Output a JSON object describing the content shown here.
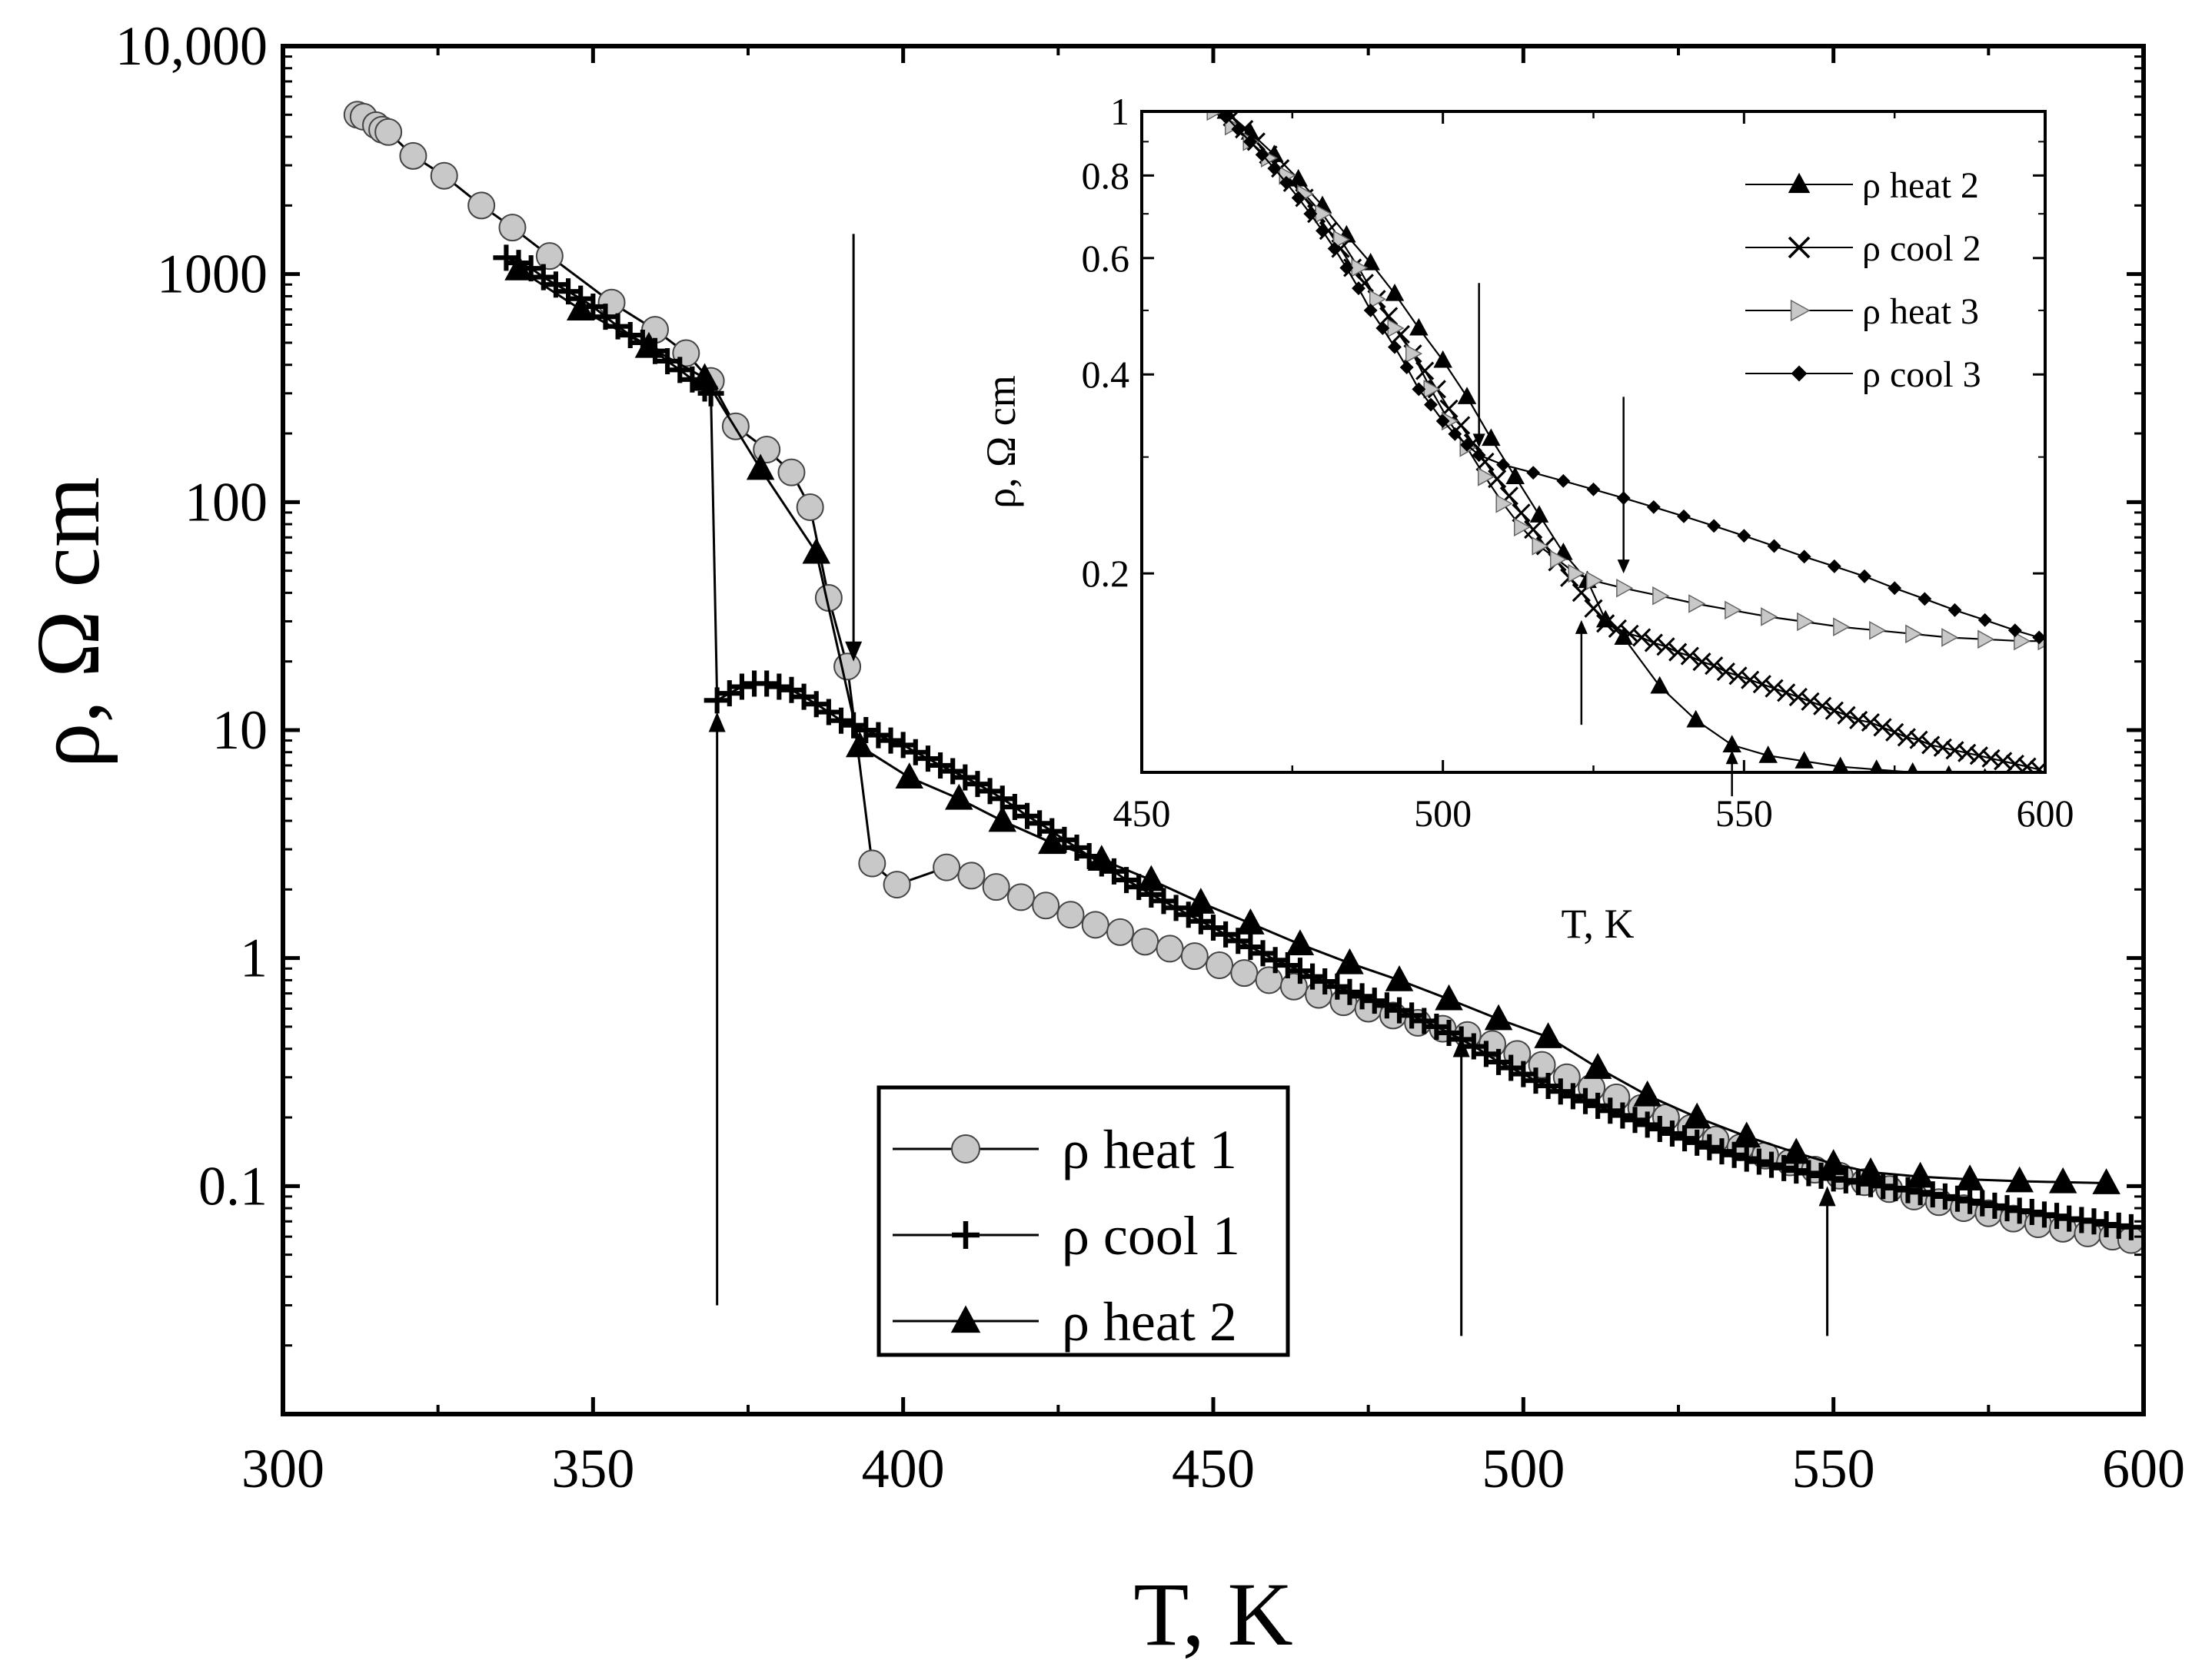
{
  "chart_data": [
    {
      "id": "main",
      "type": "line",
      "xlabel": "T, K",
      "ylabel": "ρ, Ω cm",
      "xlim": [
        300,
        600
      ],
      "ylim": [
        0.01,
        10000
      ],
      "yscale": "log",
      "x_ticks": [
        300,
        350,
        400,
        450,
        500,
        550,
        600
      ],
      "y_ticks": [
        {
          "value": 0.1,
          "label": "0.1"
        },
        {
          "value": 1,
          "label": "1"
        },
        {
          "value": 10,
          "label": "10"
        },
        {
          "value": 100,
          "label": "100"
        },
        {
          "value": 1000,
          "label": "1000"
        },
        {
          "value": 10000,
          "label": "10,000"
        }
      ],
      "legend_position": "bottom-center",
      "series": [
        {
          "name": "ρ heat 1",
          "marker": "circle",
          "marker_color": "#c8c8c8",
          "x": [
            312,
            313,
            315,
            316,
            317,
            321,
            326,
            332,
            337,
            343,
            353,
            360,
            365,
            369,
            373,
            378,
            382,
            385,
            388,
            391,
            395,
            399,
            407,
            411,
            415,
            419,
            423,
            427,
            431,
            435,
            439,
            443,
            447,
            451,
            455,
            459,
            463,
            467,
            471,
            475,
            479,
            483,
            487,
            491,
            495,
            499,
            503,
            507,
            511,
            515,
            519,
            523,
            527,
            531,
            535,
            539,
            543,
            547,
            551,
            555,
            559,
            563,
            567,
            571,
            575,
            579,
            583,
            587,
            591,
            595,
            598
          ],
          "y": [
            5000,
            4900,
            4500,
            4300,
            4200,
            3300,
            2700,
            2000,
            1600,
            1200,
            750,
            570,
            450,
            340,
            215,
            170,
            135,
            95,
            38,
            19,
            2.6,
            2.1,
            2.5,
            2.3,
            2.05,
            1.85,
            1.7,
            1.55,
            1.4,
            1.3,
            1.18,
            1.1,
            1.02,
            0.93,
            0.86,
            0.8,
            0.75,
            0.69,
            0.64,
            0.6,
            0.56,
            0.52,
            0.49,
            0.46,
            0.42,
            0.38,
            0.34,
            0.3,
            0.27,
            0.245,
            0.22,
            0.2,
            0.18,
            0.16,
            0.148,
            0.136,
            0.127,
            0.118,
            0.111,
            0.104,
            0.097,
            0.09,
            0.085,
            0.08,
            0.076,
            0.072,
            0.068,
            0.065,
            0.062,
            0.06,
            0.058
          ]
        },
        {
          "name": "ρ cool 1",
          "marker": "plus",
          "marker_color": "#000000",
          "x": [
            336,
            338,
            340,
            342,
            344,
            346,
            348,
            350,
            352,
            354,
            356,
            358,
            360,
            362,
            364,
            366,
            368,
            369,
            370,
            372,
            374,
            376,
            378,
            380,
            382,
            384,
            386,
            388,
            390,
            392,
            394,
            396,
            398,
            400,
            402,
            404,
            406,
            408,
            410,
            412,
            414,
            416,
            418,
            420,
            422,
            424,
            426,
            428,
            430,
            432,
            434,
            436,
            438,
            440,
            442,
            444,
            446,
            448,
            450,
            452,
            454,
            456,
            458,
            460,
            462,
            464,
            466,
            468,
            470,
            472,
            474,
            476,
            478,
            480,
            482,
            484,
            486,
            488,
            490,
            492,
            494,
            496,
            498,
            500,
            502,
            504,
            506,
            508,
            510,
            512,
            514,
            516,
            518,
            520,
            522,
            524,
            526,
            528,
            530,
            532,
            534,
            536,
            538,
            540,
            542,
            544,
            546,
            548,
            550,
            552,
            554,
            556,
            558,
            560,
            562,
            564,
            566,
            568,
            570,
            572,
            574,
            576,
            578,
            580,
            582,
            584,
            586,
            588,
            590,
            592,
            594,
            596,
            598
          ],
          "y": [
            1180,
            1120,
            1060,
            970,
            900,
            840,
            780,
            720,
            650,
            590,
            540,
            500,
            460,
            415,
            380,
            345,
            315,
            300,
            13.5,
            14.5,
            15.5,
            16,
            16,
            15.5,
            15,
            14,
            13,
            12,
            11,
            10.5,
            10,
            9.5,
            9,
            8.6,
            8,
            7.5,
            7,
            6.6,
            6.2,
            5.8,
            5.4,
            5.0,
            4.6,
            4.2,
            3.9,
            3.6,
            3.3,
            3.05,
            2.8,
            2.6,
            2.4,
            2.2,
            2.05,
            1.9,
            1.78,
            1.66,
            1.55,
            1.45,
            1.36,
            1.27,
            1.19,
            1.12,
            1.05,
            0.98,
            0.93,
            0.88,
            0.83,
            0.79,
            0.75,
            0.71,
            0.68,
            0.65,
            0.62,
            0.59,
            0.56,
            0.53,
            0.5,
            0.47,
            0.44,
            0.41,
            0.38,
            0.35,
            0.33,
            0.31,
            0.29,
            0.275,
            0.26,
            0.248,
            0.236,
            0.225,
            0.214,
            0.204,
            0.195,
            0.186,
            0.178,
            0.17,
            0.162,
            0.155,
            0.148,
            0.142,
            0.137,
            0.132,
            0.128,
            0.124,
            0.12,
            0.117,
            0.114,
            0.111,
            0.108,
            0.106,
            0.104,
            0.102,
            0.1,
            0.098,
            0.096,
            0.094,
            0.092,
            0.09,
            0.088,
            0.086,
            0.084,
            0.082,
            0.08,
            0.078,
            0.077,
            0.075,
            0.074,
            0.072,
            0.071,
            0.07,
            0.068,
            0.067,
            0.066
          ]
        },
        {
          "name": "ρ heat 2",
          "marker": "triangle-up",
          "marker_color": "#000000",
          "x": [
            338,
            348,
            359,
            368,
            377,
            386,
            393,
            401,
            409,
            416,
            424,
            432,
            440,
            448,
            456,
            464,
            472,
            480,
            488,
            496,
            504,
            512,
            520,
            528,
            536,
            544,
            550,
            556,
            564,
            572,
            580,
            587,
            594
          ],
          "y": [
            1050,
            700,
            480,
            350,
            140,
            60,
            8.5,
            6.2,
            5.0,
            4.0,
            3.2,
            2.7,
            2.2,
            1.75,
            1.42,
            1.15,
            0.95,
            0.8,
            0.66,
            0.54,
            0.45,
            0.33,
            0.25,
            0.2,
            0.165,
            0.14,
            0.125,
            0.115,
            0.11,
            0.107,
            0.105,
            0.104,
            0.103
          ]
        }
      ],
      "annotations": [
        {
          "type": "arrow-down",
          "x": 392,
          "y_from": 1500,
          "y_to": 20
        },
        {
          "type": "arrow-up",
          "x": 370,
          "y_from": 0.03,
          "y_to": 12
        },
        {
          "type": "arrow-up",
          "x": 490,
          "y_from": 0.022,
          "y_to": 0.45
        },
        {
          "type": "arrow-up",
          "x": 549,
          "y_from": 0.022,
          "y_to": 0.1
        }
      ]
    },
    {
      "id": "inset",
      "type": "line",
      "xlabel": "T, K",
      "ylabel": "ρ, Ω cm",
      "xlim": [
        450,
        600
      ],
      "ylim": [
        0.1,
        1
      ],
      "yscale": "log",
      "x_ticks": [
        450,
        500,
        550,
        600
      ],
      "y_ticks": [
        {
          "value": 0.2,
          "label": "0.2"
        },
        {
          "value": 0.4,
          "label": "0.4"
        },
        {
          "value": 0.6,
          "label": "0.6"
        },
        {
          "value": 0.8,
          "label": "0.8"
        },
        {
          "value": 1,
          "label": "1"
        }
      ],
      "legend_position": "top-right",
      "series": [
        {
          "name": "ρ heat 2",
          "marker": "triangle-up",
          "marker_color": "#000000",
          "x": [
            464,
            468,
            472,
            476,
            480,
            484,
            488,
            492,
            496,
            500,
            504,
            508,
            512,
            516,
            520,
            524,
            527,
            530,
            536,
            542,
            548,
            554,
            560,
            566,
            572,
            578,
            584,
            590,
            596
          ],
          "y": [
            1.0,
            0.93,
            0.86,
            0.79,
            0.72,
            0.65,
            0.59,
            0.53,
            0.47,
            0.42,
            0.37,
            0.32,
            0.28,
            0.245,
            0.215,
            0.195,
            0.17,
            0.16,
            0.135,
            0.12,
            0.11,
            0.106,
            0.104,
            0.102,
            0.101,
            0.1,
            0.099,
            0.098,
            0.097
          ]
        },
        {
          "name": "ρ cool 2",
          "marker": "x",
          "marker_color": "#000000",
          "x": [
            465,
            467,
            469,
            471,
            473,
            475,
            477,
            479,
            481,
            483,
            485,
            487,
            489,
            491,
            493,
            495,
            497,
            499,
            501,
            503,
            505,
            507,
            509,
            511,
            513,
            515,
            517,
            519,
            521,
            523,
            525,
            527,
            529,
            531,
            533,
            535,
            537,
            539,
            541,
            543,
            545,
            547,
            549,
            551,
            553,
            555,
            557,
            559,
            561,
            563,
            565,
            567,
            569,
            571,
            573,
            575,
            577,
            579,
            581,
            583,
            585,
            587,
            589,
            591,
            593,
            595,
            597,
            599
          ],
          "y": [
            0.98,
            0.94,
            0.9,
            0.86,
            0.82,
            0.78,
            0.74,
            0.7,
            0.66,
            0.62,
            0.58,
            0.55,
            0.52,
            0.49,
            0.46,
            0.43,
            0.405,
            0.38,
            0.355,
            0.335,
            0.315,
            0.295,
            0.278,
            0.262,
            0.247,
            0.233,
            0.22,
            0.208,
            0.197,
            0.187,
            0.177,
            0.168,
            0.165,
            0.162,
            0.16,
            0.157,
            0.155,
            0.152,
            0.15,
            0.147,
            0.145,
            0.142,
            0.14,
            0.138,
            0.136,
            0.134,
            0.132,
            0.13,
            0.128,
            0.126,
            0.124,
            0.122,
            0.12,
            0.119,
            0.117,
            0.115,
            0.113,
            0.112,
            0.11,
            0.109,
            0.108,
            0.107,
            0.106,
            0.105,
            0.104,
            0.103,
            0.102,
            0.101
          ]
        },
        {
          "name": "ρ heat 3",
          "marker": "triangle-right",
          "marker_color": "#c8c8c8",
          "x": [
            462,
            465,
            468,
            471,
            474,
            477,
            480,
            483,
            486,
            489,
            492,
            495,
            498,
            501,
            504,
            507,
            510,
            513,
            516,
            519,
            522,
            525,
            530,
            536,
            542,
            548,
            554,
            560,
            566,
            572,
            578,
            584,
            590,
            596,
            600
          ],
          "y": [
            1.0,
            0.95,
            0.9,
            0.85,
            0.8,
            0.75,
            0.7,
            0.64,
            0.58,
            0.52,
            0.47,
            0.43,
            0.38,
            0.34,
            0.31,
            0.28,
            0.255,
            0.235,
            0.22,
            0.21,
            0.2,
            0.195,
            0.19,
            0.185,
            0.18,
            0.176,
            0.172,
            0.169,
            0.166,
            0.164,
            0.162,
            0.16,
            0.159,
            0.158,
            0.158
          ]
        },
        {
          "name": "ρ cool 3",
          "marker": "diamond",
          "marker_color": "#000000",
          "x": [
            464,
            466,
            468,
            470,
            472,
            474,
            476,
            478,
            480,
            482,
            484,
            486,
            488,
            490,
            492,
            494,
            496,
            498,
            500,
            502,
            504,
            506,
            510,
            515,
            520,
            525,
            530,
            535,
            540,
            545,
            550,
            555,
            560,
            565,
            570,
            575,
            580,
            585,
            590,
            595,
            599
          ],
          "y": [
            0.98,
            0.94,
            0.9,
            0.86,
            0.82,
            0.78,
            0.74,
            0.7,
            0.66,
            0.62,
            0.58,
            0.54,
            0.5,
            0.47,
            0.44,
            0.41,
            0.38,
            0.36,
            0.34,
            0.325,
            0.313,
            0.302,
            0.292,
            0.284,
            0.276,
            0.268,
            0.26,
            0.252,
            0.244,
            0.236,
            0.228,
            0.22,
            0.212,
            0.205,
            0.198,
            0.19,
            0.183,
            0.176,
            0.17,
            0.164,
            0.16
          ]
        }
      ],
      "annotations": [
        {
          "type": "arrow-down",
          "x": 506,
          "y_from": 0.55,
          "y_to": 0.31
        },
        {
          "type": "arrow-down",
          "x": 530,
          "y_from": 0.37,
          "y_to": 0.2
        },
        {
          "type": "arrow-up",
          "x": 523,
          "y_from": 0.118,
          "y_to": 0.17
        },
        {
          "type": "arrow-up",
          "x": 548,
          "y_from": 0.092,
          "y_to": 0.108
        }
      ]
    }
  ]
}
